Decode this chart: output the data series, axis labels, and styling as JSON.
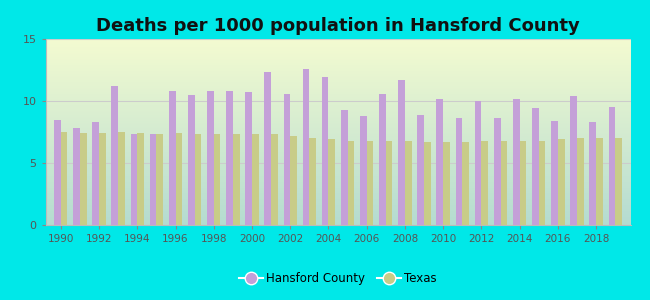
{
  "title": "Deaths per 1000 population in Hansford County",
  "years": [
    1990,
    1991,
    1992,
    1993,
    1994,
    1995,
    1996,
    1997,
    1998,
    1999,
    2000,
    2001,
    2002,
    2003,
    2004,
    2005,
    2006,
    2007,
    2008,
    2009,
    2010,
    2011,
    2012,
    2013,
    2014,
    2015,
    2016,
    2017,
    2018,
    2019
  ],
  "hansford": [
    8.5,
    7.8,
    8.3,
    11.2,
    7.3,
    7.3,
    10.8,
    10.5,
    10.8,
    10.8,
    10.7,
    12.3,
    10.6,
    12.6,
    11.9,
    9.3,
    8.8,
    10.6,
    11.7,
    8.9,
    10.2,
    8.6,
    10.0,
    8.6,
    10.2,
    9.4,
    8.4,
    10.4,
    8.3,
    9.5
  ],
  "texas": [
    7.5,
    7.4,
    7.4,
    7.5,
    7.4,
    7.3,
    7.4,
    7.3,
    7.3,
    7.3,
    7.3,
    7.3,
    7.2,
    7.0,
    6.9,
    6.8,
    6.8,
    6.8,
    6.8,
    6.7,
    6.7,
    6.7,
    6.8,
    6.8,
    6.8,
    6.8,
    6.9,
    7.0,
    7.0,
    7.0
  ],
  "hansford_color": "#c4a0d8",
  "texas_color": "#c8cc88",
  "background_color": "#00e8e8",
  "plot_bg": "#e8f5ee",
  "title_fontsize": 13,
  "ylim": [
    0,
    15
  ],
  "yticks": [
    0,
    5,
    10,
    15
  ],
  "bar_width": 0.35,
  "legend_hansford": "Hansford County",
  "legend_texas": "Texas"
}
